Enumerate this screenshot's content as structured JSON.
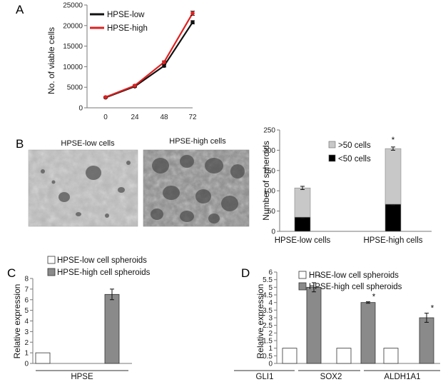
{
  "figure": {
    "panel_letters": [
      "A",
      "B",
      "C",
      "D"
    ],
    "panel_b_captions": [
      "HPSE-low cells",
      "HPSE-high cells"
    ]
  },
  "colors": {
    "low_line": "#111111",
    "high_line": "#e02020",
    "bar_black": "#000000",
    "bar_gray": "#c8c8c8",
    "bar_dark_gray": "#8a8a8a",
    "bar_white": "#ffffff"
  },
  "chart_data": [
    {
      "panel": "A",
      "type": "line",
      "x": [
        0,
        24,
        48,
        72
      ],
      "xticks": [
        "0",
        "24",
        "48",
        "72"
      ],
      "ylabel": "No. of viable cells",
      "xlabel": "",
      "ylim": [
        0,
        25000
      ],
      "yticks": [
        "0",
        "5000",
        "10000",
        "15000",
        "20000",
        "25000"
      ],
      "legend_position": "top-left",
      "series": [
        {
          "name": "HPSE-low",
          "color": "#111111",
          "values": [
            2500,
            5200,
            10200,
            20800
          ],
          "errors": [
            150,
            200,
            300,
            400
          ]
        },
        {
          "name": "HPSE-high",
          "color": "#e02020",
          "values": [
            2600,
            5400,
            11100,
            23000
          ],
          "errors": [
            150,
            200,
            300,
            500
          ]
        }
      ]
    },
    {
      "panel": "B",
      "type": "bar",
      "stacked": true,
      "categories": [
        "HPSE-low cells",
        "HPSE-high cells"
      ],
      "ylabel": "Number of spheroids",
      "xlabel": "",
      "ylim": [
        0,
        250
      ],
      "yticks": [
        "0",
        "50",
        "100",
        "150",
        "200",
        "250"
      ],
      "legend_position": "top-left",
      "series": [
        {
          "name": "<50 cells",
          "color": "#000000",
          "values": [
            35,
            67
          ],
          "errors": [
            3,
            3
          ]
        },
        {
          "name": ">50 cells",
          "color": "#c8c8c8",
          "values": [
            72,
            137
          ],
          "errors": [
            4,
            4
          ]
        }
      ],
      "significance": [
        "",
        "*"
      ]
    },
    {
      "panel": "C",
      "type": "bar",
      "group_label": "HPSE",
      "categories": [
        "HPSE"
      ],
      "ylabel": "Relative expression",
      "xlabel": "",
      "ylim": [
        0,
        8
      ],
      "yticks": [
        "0",
        "1",
        "2",
        "3",
        "4",
        "5",
        "6",
        "7",
        "8"
      ],
      "legend_position": "top",
      "series": [
        {
          "name": "HPSE-low cell spheroids",
          "color": "#ffffff",
          "values": [
            1
          ],
          "errors": [
            0
          ]
        },
        {
          "name": "HPSE-high cell spheroids",
          "color": "#8a8a8a",
          "values": [
            6.5
          ],
          "errors": [
            0.5
          ]
        }
      ]
    },
    {
      "panel": "D",
      "type": "bar",
      "categories": [
        "GLI1",
        "SOX2",
        "ALDH1A1"
      ],
      "ylabel": "Relative expression",
      "xlabel": "",
      "ylim": [
        0,
        6
      ],
      "yticks": [
        "0",
        "0.5",
        "1",
        "1.5",
        "2",
        "2.5",
        "3",
        "3.5",
        "4",
        "4.5",
        "5",
        "5.5",
        "6"
      ],
      "legend_position": "top",
      "series": [
        {
          "name": "HPSE-low cell spheroids",
          "color": "#ffffff",
          "values": [
            1,
            1,
            1
          ],
          "errors": [
            0,
            0,
            0
          ]
        },
        {
          "name": "HPSE-high cell spheroids",
          "color": "#8a8a8a",
          "values": [
            5.0,
            4.0,
            3.0
          ],
          "errors": [
            0.3,
            0.05,
            0.3
          ]
        }
      ],
      "significance": [
        "*",
        "*",
        "*"
      ]
    }
  ]
}
